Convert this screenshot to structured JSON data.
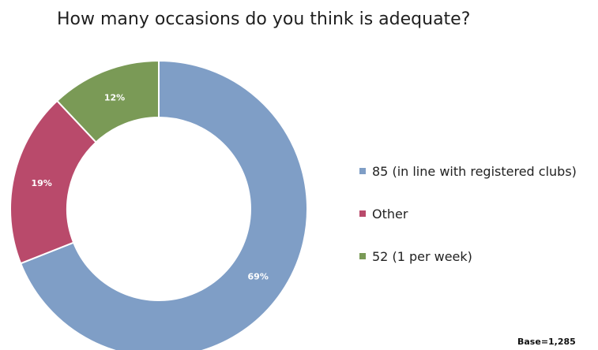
{
  "chart_data": {
    "type": "pie",
    "title": "How many occasions do you think is adequate?",
    "subtitle": "",
    "categories": [
      "85 (in line with registered clubs)",
      "Other",
      "52 (1 per week)"
    ],
    "values": [
      69,
      19,
      12
    ],
    "value_labels": [
      "69%",
      "19%",
      "12%"
    ],
    "colors": [
      "#7f9ec6",
      "#b94a6b",
      "#7a9a56"
    ],
    "donut": true,
    "legend_position": "right",
    "note": "Base=1,285"
  }
}
